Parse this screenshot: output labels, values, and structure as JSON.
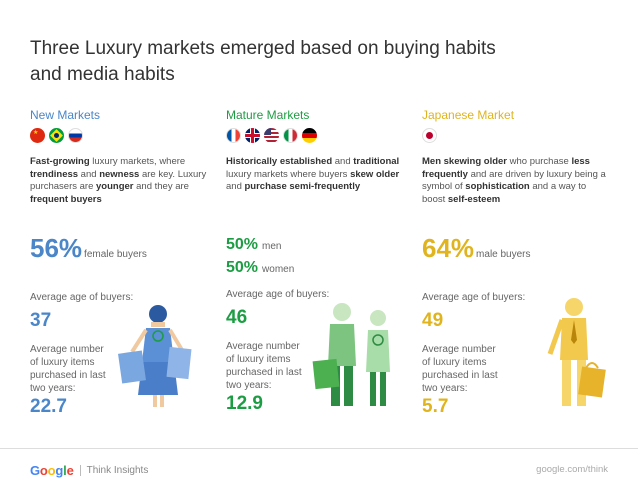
{
  "title": "Three Luxury markets emerged based on buying habits and media habits",
  "colors": {
    "blue": "#4a86c8",
    "green": "#1d9d43",
    "gold": "#e0b41e"
  },
  "columns": [
    {
      "heading": "New Markets",
      "flags": [
        "china-flag-icon",
        "brazil-flag-icon",
        "russia-flag-icon"
      ],
      "desc": [
        {
          "b": "Fast-growing"
        },
        {
          "t": " luxury markets, where "
        },
        {
          "b": "trendiness"
        },
        {
          "t": " and "
        },
        {
          "b": "newness"
        },
        {
          "t": " are key. Luxury purchasers are "
        },
        {
          "b": "younger"
        },
        {
          "t": " and they are "
        },
        {
          "b": "frequent buyers"
        }
      ],
      "big_value": "56%",
      "big_label": "female buyers",
      "age_label": "Average age of buyers:",
      "age_value": "37",
      "items_label": "Average number of luxury items purchased in last two years:",
      "items_value": "22.7"
    },
    {
      "heading": "Mature Markets",
      "flags": [
        "france-flag-icon",
        "uk-flag-icon",
        "usa-flag-icon",
        "italy-flag-icon",
        "germany-flag-icon"
      ],
      "desc": [
        {
          "b": "Historically established"
        },
        {
          "t": " and "
        },
        {
          "b": "traditional"
        },
        {
          "t": " luxury markets where buyers "
        },
        {
          "b": "skew older"
        },
        {
          "t": " and "
        },
        {
          "b": "purchase semi-frequently"
        }
      ],
      "split_1_value": "50%",
      "split_1_label": "men",
      "split_2_value": "50%",
      "split_2_label": "women",
      "age_label": "Average age of buyers:",
      "age_value": "46",
      "items_label": "Average number of luxury items purchased in last two years:",
      "items_value": "12.9"
    },
    {
      "heading": "Japanese Market",
      "flags": [
        "japan-flag-icon"
      ],
      "desc": [
        {
          "b": "Men skewing older"
        },
        {
          "t": " who purchase "
        },
        {
          "b": "less frequently"
        },
        {
          "t": " and are driven by luxury being a symbol of "
        },
        {
          "b": "sophistication"
        },
        {
          "t": " and a way to boost "
        },
        {
          "b": "self-esteem"
        }
      ],
      "big_value": "64%",
      "big_label": "male buyers",
      "age_label": "Average age of buyers:",
      "age_value": "49",
      "items_label": "Average number of luxury items purchased in last two years:",
      "items_value": "5.7"
    }
  ],
  "footer": {
    "brand": "Google",
    "product": "Think Insights",
    "url": "google.com/think"
  }
}
